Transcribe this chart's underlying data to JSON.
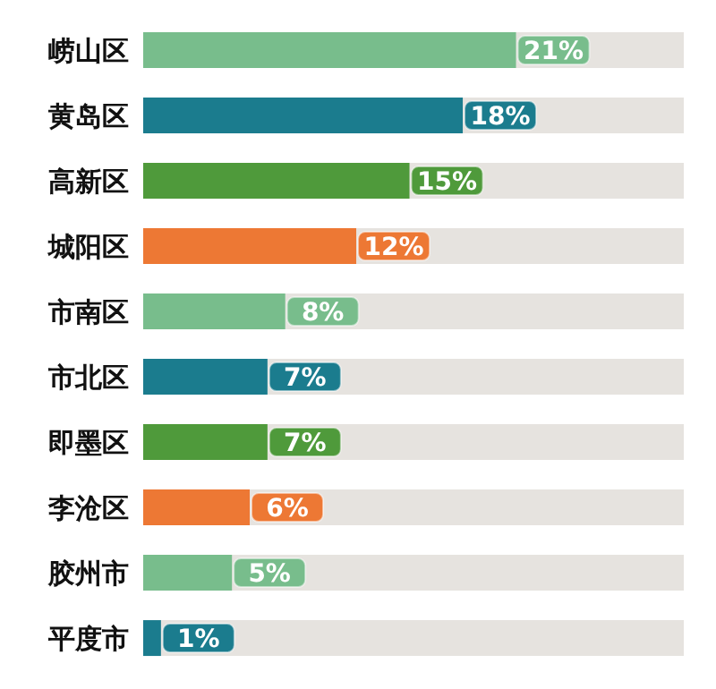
{
  "chart_data": {
    "type": "bar",
    "orientation": "horizontal",
    "categories": [
      "崂山区",
      "黄岛区",
      "高新区",
      "城阳区",
      "市南区",
      "市北区",
      "即墨区",
      "李沧区",
      "胶州市",
      "平度市"
    ],
    "values": [
      21,
      18,
      15,
      12,
      8,
      7,
      7,
      6,
      5,
      1
    ],
    "value_labels": [
      "21%",
      "18%",
      "15%",
      "12%",
      "8%",
      "7%",
      "7%",
      "6%",
      "5%",
      "1%"
    ],
    "colors": [
      "#78bd8c",
      "#1b7c8e",
      "#4f9a3b",
      "#ed7834",
      "#78bd8c",
      "#1b7c8e",
      "#4f9a3b",
      "#ed7834",
      "#78bd8c",
      "#1b7c8e"
    ]
  }
}
